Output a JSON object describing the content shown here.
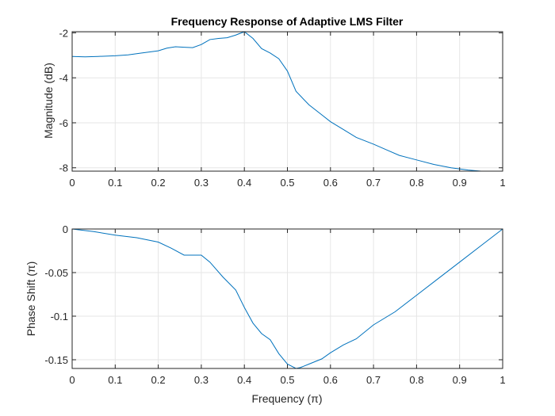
{
  "chart_data": [
    {
      "type": "line",
      "title": "Frequency Response of Adaptive LMS Filter",
      "xlabel": "",
      "ylabel": "Magnitude (dB)",
      "xlim": [
        0,
        1
      ],
      "ylim": [
        -8.15,
        -1.95
      ],
      "xticks": [
        "0",
        "0.1",
        "0.2",
        "0.3",
        "0.4",
        "0.5",
        "0.6",
        "0.7",
        "0.8",
        "0.9",
        "1"
      ],
      "yticks": [
        "-2",
        "-4",
        "-6",
        "-8"
      ],
      "ytick_values": [
        -2,
        -4,
        -6,
        -8
      ],
      "grid": true,
      "color": "#0072bd",
      "series": [
        {
          "x": [
            0,
            0.03,
            0.06,
            0.1,
            0.13,
            0.16,
            0.2,
            0.22,
            0.24,
            0.26,
            0.28,
            0.3,
            0.32,
            0.34,
            0.36,
            0.38,
            0.4,
            0.42,
            0.44,
            0.46,
            0.48,
            0.5,
            0.52,
            0.55,
            0.58,
            0.6,
            0.63,
            0.66,
            0.7,
            0.73,
            0.76,
            0.8,
            0.84,
            0.88,
            0.92,
            0.95,
            1
          ],
          "y": [
            -3.05,
            -3.07,
            -3.05,
            -3.02,
            -2.98,
            -2.9,
            -2.8,
            -2.68,
            -2.62,
            -2.64,
            -2.66,
            -2.52,
            -2.3,
            -2.25,
            -2.22,
            -2.1,
            -1.95,
            -2.25,
            -2.7,
            -2.9,
            -3.15,
            -3.7,
            -4.6,
            -5.2,
            -5.65,
            -5.95,
            -6.3,
            -6.65,
            -6.95,
            -7.2,
            -7.45,
            -7.65,
            -7.85,
            -8.0,
            -8.1,
            -8.15,
            -8.15
          ]
        }
      ]
    },
    {
      "type": "line",
      "title": "",
      "xlabel": "Frequency (π)",
      "ylabel": "Phase Shift (π)",
      "xlim": [
        0,
        1
      ],
      "ylim": [
        -0.16,
        0
      ],
      "xticks": [
        "0",
        "0.1",
        "0.2",
        "0.3",
        "0.4",
        "0.5",
        "0.6",
        "0.7",
        "0.8",
        "0.9",
        "1"
      ],
      "yticks": [
        "0",
        "-0.05",
        "-0.1",
        "-0.15"
      ],
      "ytick_values": [
        0,
        -0.05,
        -0.1,
        -0.15
      ],
      "grid": true,
      "color": "#0072bd",
      "series": [
        {
          "x": [
            0,
            0.05,
            0.1,
            0.15,
            0.2,
            0.23,
            0.26,
            0.28,
            0.3,
            0.32,
            0.35,
            0.38,
            0.4,
            0.42,
            0.44,
            0.46,
            0.48,
            0.5,
            0.52,
            0.53,
            0.55,
            0.58,
            0.6,
            0.63,
            0.66,
            0.7,
            0.75,
            0.8,
            0.85,
            0.9,
            0.95,
            1
          ],
          "y": [
            0,
            -0.003,
            -0.007,
            -0.01,
            -0.015,
            -0.022,
            -0.03,
            -0.03,
            -0.03,
            -0.038,
            -0.055,
            -0.07,
            -0.09,
            -0.108,
            -0.12,
            -0.127,
            -0.143,
            -0.155,
            -0.16,
            -0.159,
            -0.155,
            -0.149,
            -0.142,
            -0.133,
            -0.126,
            -0.11,
            -0.095,
            -0.076,
            -0.057,
            -0.038,
            -0.019,
            0
          ]
        }
      ]
    }
  ]
}
